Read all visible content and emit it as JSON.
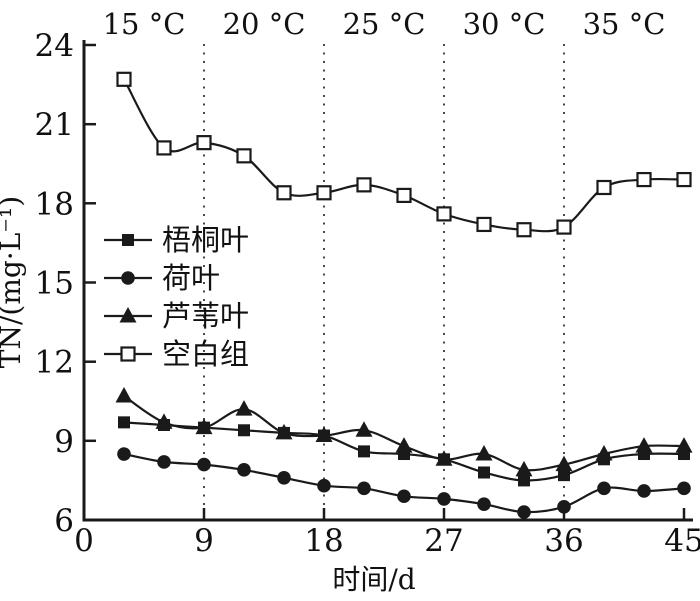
{
  "chart_data": {
    "type": "line",
    "title": "",
    "xlabel": "时间/d",
    "ylabel": "TN/(mg·L⁻¹)",
    "xlim": [
      0,
      45
    ],
    "ylim": [
      6,
      24
    ],
    "x_ticks": [
      0,
      9,
      18,
      27,
      36,
      45
    ],
    "y_ticks": [
      6,
      9,
      12,
      15,
      18,
      21,
      24
    ],
    "grid": "off",
    "legend_position": "inside-upper-left",
    "x_days": [
      3,
      6,
      9,
      12,
      15,
      18,
      21,
      24,
      27,
      30,
      33,
      36,
      39,
      42,
      45
    ],
    "vlines_days": [
      9,
      18,
      27,
      36
    ],
    "temp_segments": [
      {
        "label": "15 °C",
        "center_day": 4.5
      },
      {
        "label": "20 °C",
        "center_day": 13.5
      },
      {
        "label": "25 °C",
        "center_day": 22.5
      },
      {
        "label": "30 °C",
        "center_day": 31.5
      },
      {
        "label": "35 °C",
        "center_day": 40.5
      }
    ],
    "series": [
      {
        "id": "wutong-leaf",
        "name": "梧桐叶",
        "marker": "filled-square",
        "values": [
          9.7,
          9.6,
          9.5,
          9.4,
          9.3,
          9.2,
          8.6,
          8.5,
          8.3,
          7.8,
          7.5,
          7.7,
          8.3,
          8.5,
          8.5
        ]
      },
      {
        "id": "lotus-leaf",
        "name": "荷叶",
        "marker": "filled-circle",
        "values": [
          8.5,
          8.2,
          8.1,
          7.9,
          7.6,
          7.3,
          7.2,
          6.9,
          6.8,
          6.6,
          6.3,
          6.5,
          7.2,
          7.1,
          7.2
        ]
      },
      {
        "id": "reed-leaf",
        "name": "芦苇叶",
        "marker": "filled-triangle",
        "values": [
          10.7,
          9.7,
          9.5,
          10.2,
          9.3,
          9.2,
          9.4,
          8.8,
          8.3,
          8.5,
          7.9,
          8.1,
          8.5,
          8.8,
          8.8
        ]
      },
      {
        "id": "blank-control",
        "name": "空白组",
        "marker": "open-square",
        "values": [
          22.7,
          20.1,
          20.3,
          19.8,
          18.4,
          18.4,
          18.7,
          18.3,
          17.6,
          17.2,
          17.0,
          17.1,
          18.6,
          18.9,
          18.9
        ]
      }
    ],
    "colors": {
      "line": "#1a1a1a",
      "dotted_line": "#4a4a4a",
      "background": "#ffffff",
      "text": "#111111"
    }
  }
}
